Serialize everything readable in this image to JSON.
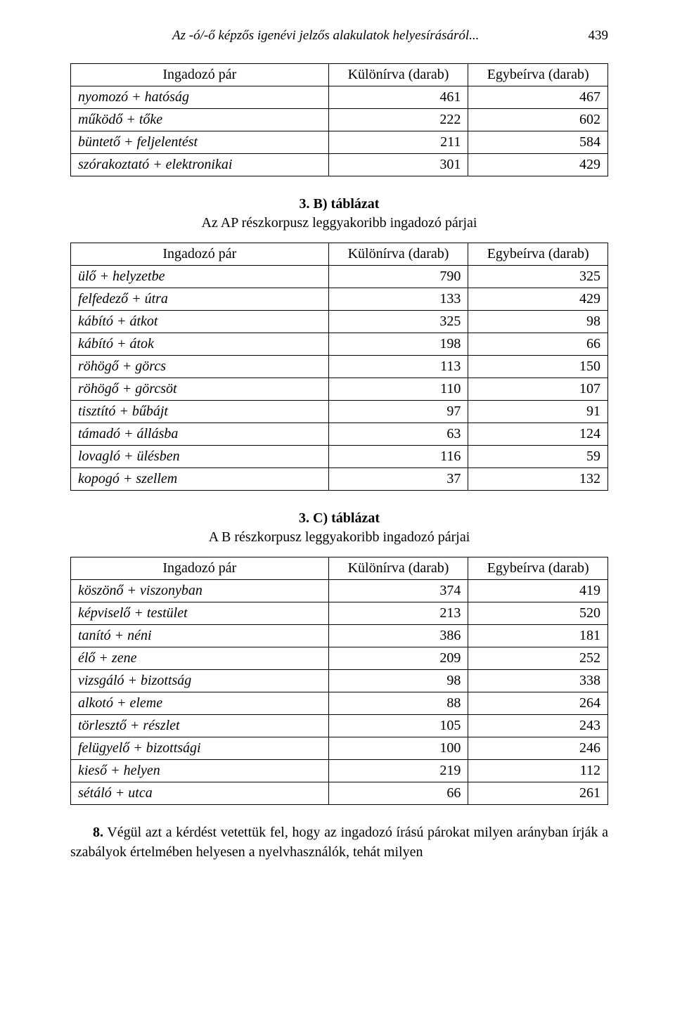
{
  "page": {
    "running_title": "Az -ó/-ő képzős igenévi jelzős alakulatok helyesírásáról...",
    "number": "439"
  },
  "style": {
    "background_color": "#ffffff",
    "text_color": "#000000",
    "border_color": "#000000",
    "font_family": "Times New Roman",
    "body_fontsize_pt": 15,
    "header_fontsize_pt": 14,
    "table_fontsize_pt": 15,
    "italic_labels": true,
    "col_widths_pct": [
      48,
      26,
      26
    ]
  },
  "tableA": {
    "headers": [
      "Ingadozó pár",
      "Különírva (darab)",
      "Egybeírva (darab)"
    ],
    "rows": [
      {
        "label": "nyomozó + hatóság",
        "sep": "461",
        "joined": "467"
      },
      {
        "label": "működő + tőke",
        "sep": "222",
        "joined": "602"
      },
      {
        "label": "büntető + feljelentést",
        "sep": "211",
        "joined": "584"
      },
      {
        "label": "szórakoztató + elektronikai",
        "sep": "301",
        "joined": "429"
      }
    ]
  },
  "captionB": {
    "bold": "3. B) táblázat",
    "line": "Az AP részkorpusz leggyakoribb ingadozó párjai"
  },
  "tableB": {
    "headers": [
      "Ingadozó pár",
      "Különírva (darab)",
      "Egybeírva (darab)"
    ],
    "rows": [
      {
        "label": "ülő + helyzetbe",
        "sep": "790",
        "joined": "325"
      },
      {
        "label": "felfedező + útra",
        "sep": "133",
        "joined": "429"
      },
      {
        "label": "kábító + átkot",
        "sep": "325",
        "joined": "98"
      },
      {
        "label": "kábító + átok",
        "sep": "198",
        "joined": "66"
      },
      {
        "label": "röhögő + görcs",
        "sep": "113",
        "joined": "150"
      },
      {
        "label": "röhögő + görcsöt",
        "sep": "110",
        "joined": "107"
      },
      {
        "label": "tisztító + bűbájt",
        "sep": "97",
        "joined": "91"
      },
      {
        "label": "támadó + állásba",
        "sep": "63",
        "joined": "124"
      },
      {
        "label": "lovagló + ülésben",
        "sep": "116",
        "joined": "59"
      },
      {
        "label": "kopogó + szellem",
        "sep": "37",
        "joined": "132"
      }
    ]
  },
  "captionC": {
    "bold": "3. C) táblázat",
    "line": "A B részkorpusz leggyakoribb ingadozó párjai"
  },
  "tableC": {
    "headers": [
      "Ingadozó pár",
      "Különírva (darab)",
      "Egybeírva (darab)"
    ],
    "rows": [
      {
        "label": "köszönő + viszonyban",
        "sep": "374",
        "joined": "419"
      },
      {
        "label": "képviselő + testület",
        "sep": "213",
        "joined": "520"
      },
      {
        "label": "tanító + néni",
        "sep": "386",
        "joined": "181"
      },
      {
        "label": "élő + zene",
        "sep": "209",
        "joined": "252"
      },
      {
        "label": "vizsgáló + bizottság",
        "sep": "98",
        "joined": "338"
      },
      {
        "label": "alkotó + eleme",
        "sep": "88",
        "joined": "264"
      },
      {
        "label": "törlesztő + részlet",
        "sep": "105",
        "joined": "243"
      },
      {
        "label": "felügyelő + bizottsági",
        "sep": "100",
        "joined": "246"
      },
      {
        "label": "kieső + helyen",
        "sep": "219",
        "joined": "112"
      },
      {
        "label": "sétáló + utca",
        "sep": "66",
        "joined": "261"
      }
    ]
  },
  "paragraph": {
    "lead": "8.",
    "text": " Végül azt a kérdést vetettük fel, hogy az ingadozó írású párokat milyen arányban írják a szabályok értelmében helyesen a nyelvhasználók, tehát milyen"
  }
}
